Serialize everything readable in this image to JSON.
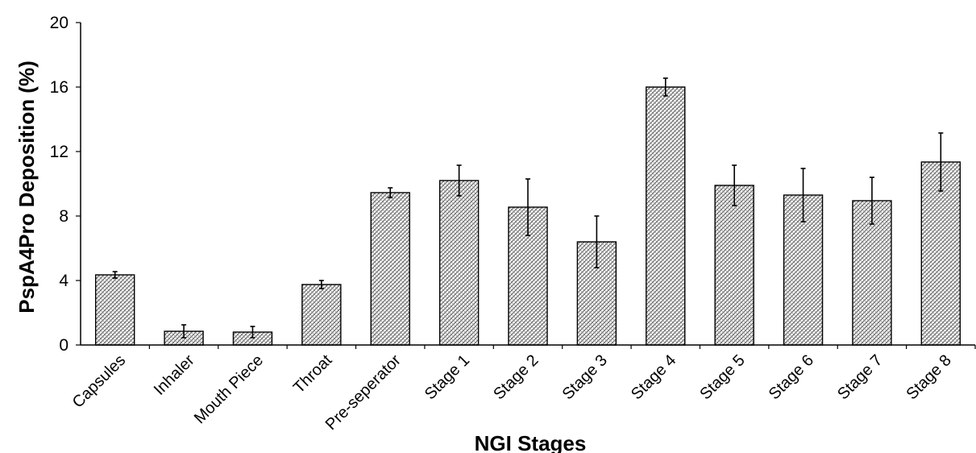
{
  "chart_data": {
    "type": "bar",
    "title": "",
    "xlabel": "NGI Stages",
    "ylabel": "PspA4Pro Deposition (%)",
    "ylim": [
      0,
      20
    ],
    "yticks": [
      0,
      4,
      8,
      12,
      16,
      20
    ],
    "grid": false,
    "legend": "none",
    "bar_fill": "crosshatch",
    "categories": [
      "Capsules",
      "Inhaler",
      "Mouth Piece",
      "Throat",
      "Pre-seperator",
      "Stage 1",
      "Stage 2",
      "Stage 3",
      "Stage 4",
      "Stage 5",
      "Stage 6",
      "Stage 7",
      "Stage 8"
    ],
    "series": [
      {
        "values": [
          4.35,
          0.85,
          0.8,
          3.75,
          9.45,
          10.2,
          8.55,
          6.4,
          16.0,
          9.9,
          9.3,
          8.95,
          11.35
        ],
        "errors": [
          0.2,
          0.4,
          0.35,
          0.25,
          0.3,
          0.95,
          1.75,
          1.6,
          0.55,
          1.25,
          1.65,
          1.45,
          1.8
        ]
      }
    ]
  },
  "colors": {
    "bar_hatch": "#555555",
    "bar_bg": "#ffffff",
    "axis": "#000000",
    "text": "#000000"
  }
}
